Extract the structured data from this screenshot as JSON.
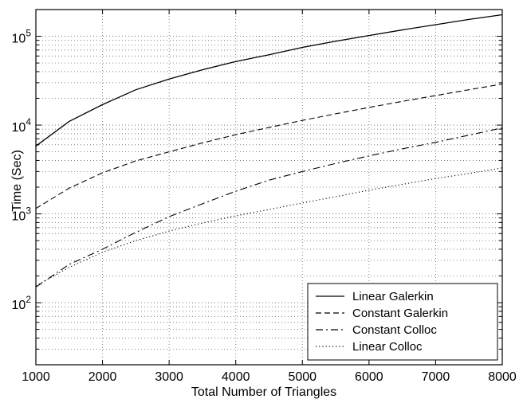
{
  "chart_data": {
    "type": "line",
    "title": "",
    "xlabel": "Total Number of Triangles",
    "ylabel": "Time (Sec)",
    "xlim": [
      1000,
      8000
    ],
    "ylim": [
      20,
      200000
    ],
    "yscale": "log",
    "grid": true,
    "legend_position": "bottom-right",
    "x_ticks": [
      "1000",
      "2000",
      "3000",
      "4000",
      "5000",
      "6000",
      "7000",
      "8000"
    ],
    "y_ticks": [
      {
        "value": 100,
        "base": "10",
        "exp": "2"
      },
      {
        "value": 1000,
        "base": "10",
        "exp": "3"
      },
      {
        "value": 10000,
        "base": "10",
        "exp": "4"
      },
      {
        "value": 100000,
        "base": "10",
        "exp": "5"
      }
    ],
    "x": [
      1000,
      1500,
      2000,
      2500,
      3000,
      3500,
      4000,
      4500,
      5000,
      5500,
      6000,
      6500,
      7000,
      7500,
      8000
    ],
    "series": [
      {
        "name": "Linear Galerkin",
        "style": "solid",
        "values": [
          5800,
          11000,
          17000,
          25000,
          33000,
          42000,
          52000,
          62000,
          75000,
          88000,
          102000,
          118000,
          135000,
          155000,
          175000
        ]
      },
      {
        "name": "Constant Galerkin",
        "style": "dashed",
        "values": [
          1150,
          1950,
          2900,
          3950,
          5000,
          6300,
          7800,
          9400,
          11300,
          13400,
          15800,
          18500,
          21500,
          25000,
          29000
        ]
      },
      {
        "name": "Constant Colloc",
        "style": "dashdot",
        "values": [
          150,
          270,
          400,
          620,
          930,
          1300,
          1800,
          2400,
          3000,
          3700,
          4500,
          5400,
          6400,
          7700,
          9300
        ]
      },
      {
        "name": "Linear Colloc",
        "style": "dotted",
        "values": [
          155,
          250,
          370,
          500,
          640,
          790,
          950,
          1120,
          1330,
          1560,
          1850,
          2150,
          2500,
          2850,
          3300
        ]
      }
    ]
  }
}
